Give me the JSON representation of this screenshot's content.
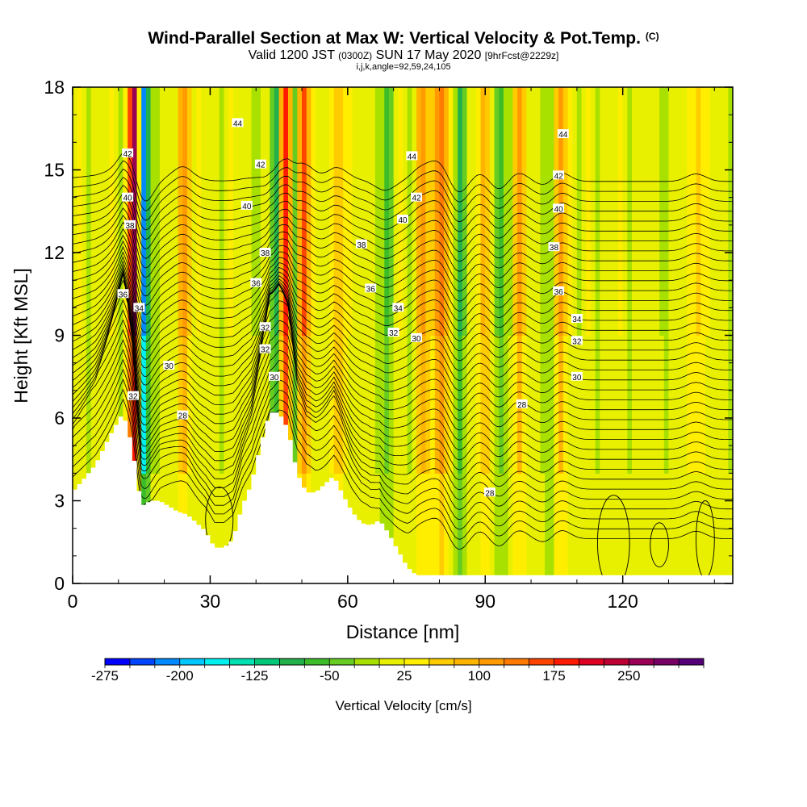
{
  "header": {
    "title": "Wind-Parallel Section at Max W: Vertical Velocity & Pot.Temp.",
    "copyright": "(C)",
    "subtitle_main": "Valid 1200 JST",
    "subtitle_z": "(0300Z)",
    "subtitle_date": "SUN 17 May 2020",
    "subtitle_fcst": "[9hrFcst@2229z]",
    "subtitle_indices": "i,j,k,angle=92,59,24,105"
  },
  "chart_data": {
    "type": "heatmap",
    "xlabel": "Distance [nm]",
    "ylabel": "Height [Kft MSL]",
    "xlim": [
      0,
      144
    ],
    "ylim": [
      0,
      18
    ],
    "x_ticks": [
      "0",
      "30",
      "60",
      "90",
      "120"
    ],
    "y_ticks": [
      "0",
      "3",
      "6",
      "9",
      "12",
      "15",
      "18"
    ],
    "colorbar": {
      "label": "Vertical Velocity [cm/s]",
      "range": [
        -275,
        325
      ],
      "tick_labels": [
        "-275",
        "-200",
        "-125",
        "-50",
        "25",
        "100",
        "175",
        "250"
      ],
      "tick_values": [
        -275,
        -200,
        -125,
        -50,
        25,
        100,
        175,
        250
      ],
      "colors": [
        "#0000ff",
        "#0044ff",
        "#0088ff",
        "#00c8ff",
        "#00f0f0",
        "#00e0b0",
        "#00c878",
        "#22b04a",
        "#3cbc28",
        "#66cc22",
        "#a8e000",
        "#e8f000",
        "#ffee00",
        "#ffcc00",
        "#ffb400",
        "#ff9a00",
        "#ff7a00",
        "#ff4400",
        "#ff1a00",
        "#dd0022",
        "#bb0033",
        "#990055",
        "#770066",
        "#550077"
      ]
    },
    "updrafts_cm_s": [
      {
        "x": 13,
        "peak": 250
      },
      {
        "x": 24,
        "peak": 100
      },
      {
        "x": 46,
        "peak": 200
      },
      {
        "x": 50,
        "peak": 150
      },
      {
        "x": 58,
        "peak": 75
      },
      {
        "x": 76,
        "peak": 100
      },
      {
        "x": 80,
        "peak": 150
      },
      {
        "x": 89,
        "peak": 75
      },
      {
        "x": 97,
        "peak": 75
      },
      {
        "x": 106,
        "peak": 100
      },
      {
        "x": 136,
        "peak": 60
      }
    ],
    "downdrafts_cm_s": [
      {
        "x": 15,
        "peak": -275
      },
      {
        "x": 44,
        "peak": -125
      },
      {
        "x": 48,
        "peak": -100
      },
      {
        "x": 68,
        "peak": -75
      },
      {
        "x": 84,
        "peak": -100
      },
      {
        "x": 93,
        "peak": -75
      },
      {
        "x": 104,
        "peak": -60
      }
    ],
    "terrain_kft": {
      "x": [
        0,
        2,
        5,
        8,
        11,
        13,
        15,
        17,
        19,
        21,
        23,
        25,
        27,
        29,
        31,
        33,
        35,
        37,
        39,
        41,
        43,
        45,
        47,
        49,
        51,
        53,
        55,
        57,
        59,
        61,
        63,
        65,
        67,
        69,
        71,
        73,
        75,
        80,
        90,
        100,
        144
      ],
      "h": [
        3.3,
        3.7,
        4.3,
        5.3,
        6.2,
        5.0,
        2.8,
        3.0,
        3.0,
        2.8,
        2.6,
        2.5,
        2.2,
        1.9,
        1.3,
        1.3,
        1.6,
        2.8,
        3.6,
        5.0,
        6.2,
        6.2,
        5.6,
        4.0,
        3.3,
        3.3,
        3.6,
        3.9,
        3.2,
        2.6,
        2.2,
        2.1,
        2.3,
        1.8,
        1.2,
        0.6,
        0.3,
        0.3,
        0.3,
        0.3,
        0.3
      ]
    },
    "isentrope_labels": [
      {
        "text": "42",
        "x": 12,
        "y": 15.6
      },
      {
        "text": "40",
        "x": 12,
        "y": 14.0
      },
      {
        "text": "38",
        "x": 12.5,
        "y": 13.0
      },
      {
        "text": "36",
        "x": 11,
        "y": 10.5
      },
      {
        "text": "34",
        "x": 14.5,
        "y": 10.0
      },
      {
        "text": "32",
        "x": 13.2,
        "y": 6.8
      },
      {
        "text": "30",
        "x": 21,
        "y": 7.9
      },
      {
        "text": "28",
        "x": 24,
        "y": 6.1
      },
      {
        "text": "44",
        "x": 36,
        "y": 16.7
      },
      {
        "text": "42",
        "x": 41,
        "y": 15.2
      },
      {
        "text": "40",
        "x": 38,
        "y": 13.7
      },
      {
        "text": "38",
        "x": 42,
        "y": 12.0
      },
      {
        "text": "36",
        "x": 40,
        "y": 10.9
      },
      {
        "text": "32",
        "x": 42,
        "y": 9.3
      },
      {
        "text": "32",
        "x": 42,
        "y": 8.5
      },
      {
        "text": "30",
        "x": 44,
        "y": 7.5
      },
      {
        "text": "44",
        "x": 74,
        "y": 15.5
      },
      {
        "text": "42",
        "x": 75,
        "y": 14.0
      },
      {
        "text": "40",
        "x": 72,
        "y": 13.2
      },
      {
        "text": "38",
        "x": 63,
        "y": 12.3
      },
      {
        "text": "36",
        "x": 65,
        "y": 10.7
      },
      {
        "text": "34",
        "x": 71,
        "y": 10.0
      },
      {
        "text": "32",
        "x": 70,
        "y": 9.1
      },
      {
        "text": "30",
        "x": 75,
        "y": 8.9
      },
      {
        "text": "28",
        "x": 98,
        "y": 6.5
      },
      {
        "text": "28",
        "x": 91,
        "y": 3.3
      },
      {
        "text": "44",
        "x": 107,
        "y": 16.3
      },
      {
        "text": "42",
        "x": 106,
        "y": 14.8
      },
      {
        "text": "40",
        "x": 106,
        "y": 13.6
      },
      {
        "text": "38",
        "x": 105,
        "y": 12.2
      },
      {
        "text": "36",
        "x": 106,
        "y": 10.6
      },
      {
        "text": "34",
        "x": 110,
        "y": 9.6
      },
      {
        "text": "32",
        "x": 110,
        "y": 8.8
      },
      {
        "text": "30",
        "x": 110,
        "y": 7.5
      }
    ],
    "closed_contours": [
      {
        "x": 32,
        "y": 2.3,
        "rx": 3.0,
        "ry": 1.2
      },
      {
        "x": 118,
        "y": 1.5,
        "rx": 3.5,
        "ry": 1.7
      },
      {
        "x": 128,
        "y": 1.4,
        "rx": 2.0,
        "ry": 0.8
      },
      {
        "x": 138,
        "y": 1.6,
        "rx": 2.0,
        "ry": 1.4
      }
    ]
  }
}
